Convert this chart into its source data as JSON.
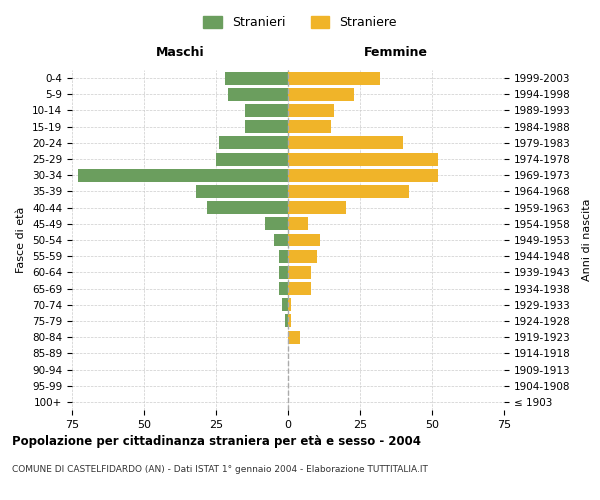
{
  "age_groups": [
    "100+",
    "95-99",
    "90-94",
    "85-89",
    "80-84",
    "75-79",
    "70-74",
    "65-69",
    "60-64",
    "55-59",
    "50-54",
    "45-49",
    "40-44",
    "35-39",
    "30-34",
    "25-29",
    "20-24",
    "15-19",
    "10-14",
    "5-9",
    "0-4"
  ],
  "birth_years": [
    "≤ 1903",
    "1904-1908",
    "1909-1913",
    "1914-1918",
    "1919-1923",
    "1924-1928",
    "1929-1933",
    "1934-1938",
    "1939-1943",
    "1944-1948",
    "1949-1953",
    "1954-1958",
    "1959-1963",
    "1964-1968",
    "1969-1973",
    "1974-1978",
    "1979-1983",
    "1984-1988",
    "1989-1993",
    "1994-1998",
    "1999-2003"
  ],
  "maschi": [
    0,
    0,
    0,
    0,
    0,
    1,
    2,
    3,
    3,
    3,
    5,
    8,
    28,
    32,
    73,
    25,
    24,
    15,
    15,
    21,
    22
  ],
  "femmine": [
    0,
    0,
    0,
    0,
    4,
    1,
    1,
    8,
    8,
    10,
    11,
    7,
    20,
    42,
    52,
    52,
    40,
    15,
    16,
    23,
    32
  ],
  "color_maschi": "#6b9e5e",
  "color_femmine": "#f0b429",
  "title": "Popolazione per cittadinanza straniera per età e sesso - 2004",
  "subtitle": "COMUNE DI CASTELFIDARDO (AN) - Dati ISTAT 1° gennaio 2004 - Elaborazione TUTTITALIA.IT",
  "xlabel_left": "Maschi",
  "xlabel_right": "Femmine",
  "ylabel_left": "Fasce di età",
  "ylabel_right": "Anni di nascita",
  "legend_maschi": "Stranieri",
  "legend_femmine": "Straniere",
  "xlim": 75,
  "background_color": "#ffffff",
  "grid_color": "#cccccc"
}
